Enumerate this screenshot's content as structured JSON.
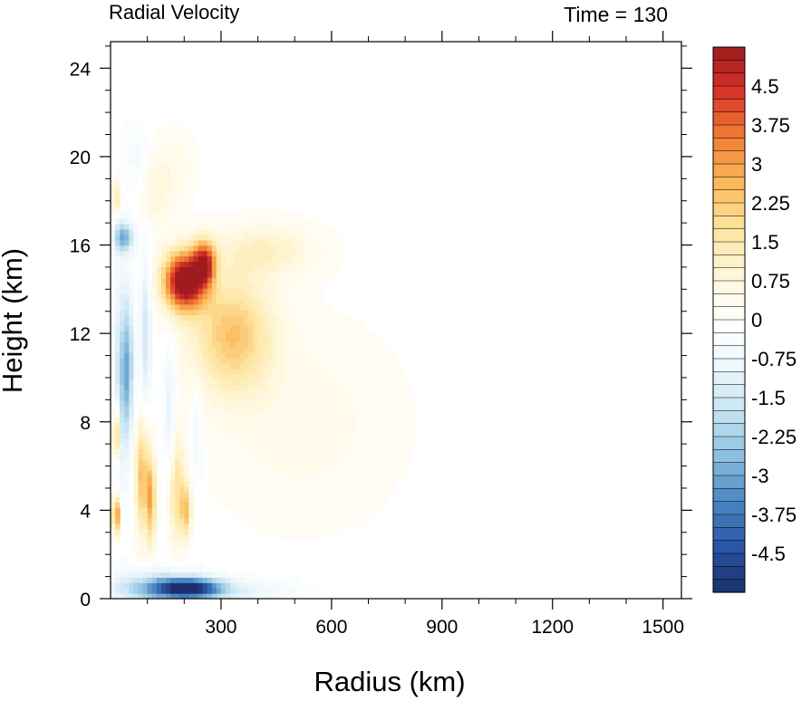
{
  "chart_data": {
    "type": "heatmap",
    "title": "Radial Velocity",
    "subtitle": "Time = 130",
    "xlabel": "Radius (km)",
    "ylabel": "Height (km)",
    "xlim": [
      0,
      1550
    ],
    "ylim": [
      0,
      25.2
    ],
    "x_ticks": [
      300,
      600,
      900,
      1200,
      1500
    ],
    "y_ticks": [
      0,
      4,
      8,
      12,
      16,
      20,
      24
    ],
    "grid": false,
    "colorbar": {
      "position": "right",
      "range": [
        -5.25,
        5.25
      ],
      "step": 0.25,
      "tick_labels": [
        "4.5",
        "3.75",
        "3",
        "2.25",
        "1.5",
        "0.75",
        "0",
        "-0.75",
        "-1.5",
        "-2.25",
        "-3",
        "-3.75",
        "-4.5"
      ],
      "tick_values": [
        4.5,
        3.75,
        3,
        2.25,
        1.5,
        0.75,
        0,
        -0.75,
        -1.5,
        -2.25,
        -3,
        -3.75,
        -4.5
      ],
      "colors": [
        "#1a2f6b",
        "#2a56a5",
        "#4b86c2",
        "#8cc0e0",
        "#c8e4f2",
        "#eef7fc",
        "#ffffff",
        "#fff6d8",
        "#fde5a0",
        "#fbb95a",
        "#f07f33",
        "#d9352a",
        "#9e1b1e"
      ]
    },
    "features": [
      {
        "type": "inflow",
        "r": 215,
        "z": 0.5,
        "sr": 90,
        "sz": 0.45,
        "v": -4.2
      },
      {
        "type": "inflow",
        "r": 120,
        "z": 0.5,
        "sr": 120,
        "sz": 0.8,
        "v": -2.2
      },
      {
        "type": "inflow",
        "r": 330,
        "z": 0.3,
        "sr": 180,
        "sz": 0.6,
        "v": -1.0
      },
      {
        "type": "outflow",
        "r": 200,
        "z": 14.4,
        "sr": 55,
        "sz": 1.3,
        "v": 6.0
      },
      {
        "type": "outflow",
        "r": 255,
        "z": 15.2,
        "sr": 30,
        "sz": 1.0,
        "v": 4.0
      },
      {
        "type": "outflow",
        "r": 330,
        "z": 12.0,
        "sr": 110,
        "sz": 2.6,
        "v": 2.3
      },
      {
        "type": "outflow",
        "r": 420,
        "z": 15.8,
        "sr": 140,
        "sz": 1.2,
        "v": 1.1
      },
      {
        "type": "outflow",
        "r": 520,
        "z": 8.0,
        "sr": 260,
        "sz": 4.5,
        "v": 0.5
      },
      {
        "type": "column",
        "r": 30,
        "z": 10.0,
        "sr": 22,
        "sz": 4.5,
        "v": -1.8
      },
      {
        "type": "column",
        "r": 35,
        "z": 16.4,
        "sr": 28,
        "sz": 0.7,
        "v": -2.8
      },
      {
        "type": "column",
        "r": 48,
        "z": 10.5,
        "sr": 16,
        "sz": 3.0,
        "v": -2.0
      },
      {
        "type": "column",
        "r": 15,
        "z": 7.5,
        "sr": 10,
        "sz": 1.2,
        "v": 3.0
      },
      {
        "type": "column",
        "r": 15,
        "z": 3.8,
        "sr": 10,
        "sz": 0.9,
        "v": 3.5
      },
      {
        "type": "column",
        "r": 15,
        "z": 18.2,
        "sr": 12,
        "sz": 0.8,
        "v": 1.5
      },
      {
        "type": "column",
        "r": 85,
        "z": 5.5,
        "sr": 18,
        "sz": 2.6,
        "v": 2.5
      },
      {
        "type": "column",
        "r": 110,
        "z": 4.5,
        "sr": 12,
        "sz": 2.0,
        "v": 2.8
      },
      {
        "type": "column",
        "r": 95,
        "z": 12.0,
        "sr": 14,
        "sz": 3.5,
        "v": -1.6
      },
      {
        "type": "column",
        "r": 180,
        "z": 5.0,
        "sr": 22,
        "sz": 2.5,
        "v": 1.8
      },
      {
        "type": "column",
        "r": 205,
        "z": 4.0,
        "sr": 14,
        "sz": 1.2,
        "v": 2.2
      },
      {
        "type": "column",
        "r": 160,
        "z": 8.5,
        "sr": 16,
        "sz": 3.0,
        "v": -1.2
      },
      {
        "type": "column",
        "r": 235,
        "z": 7.5,
        "sr": 14,
        "sz": 2.5,
        "v": -0.8
      },
      {
        "type": "column",
        "r": 120,
        "z": 18.5,
        "sr": 40,
        "sz": 1.8,
        "v": 0.8
      },
      {
        "type": "column",
        "r": 70,
        "z": 20.0,
        "sr": 40,
        "sz": 1.5,
        "v": -0.5
      },
      {
        "type": "column",
        "r": 180,
        "z": 19.5,
        "sr": 50,
        "sz": 1.8,
        "v": 0.5
      }
    ]
  }
}
